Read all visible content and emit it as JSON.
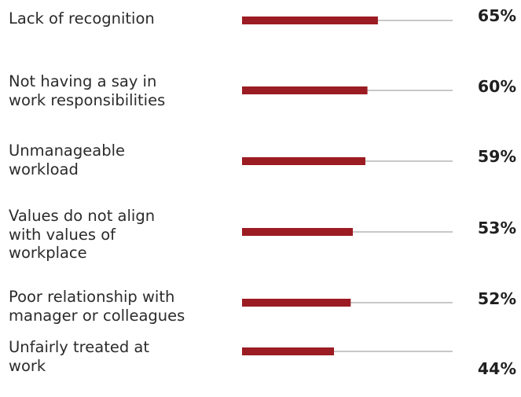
{
  "chart_data": {
    "type": "bar",
    "orientation": "horizontal",
    "categories": [
      "Lack of recognition",
      "Not having a say in\nwork responsibilities",
      "Unmanageable\nworkload",
      "Values do not align\nwith values of\nworkplace",
      "Poor relationship with\nmanager or colleagues",
      "Unfairly treated at\nwork"
    ],
    "values": [
      65,
      60,
      59,
      53,
      52,
      44
    ],
    "value_labels": [
      "65%",
      "60%",
      "59%",
      "53%",
      "52%",
      "44%"
    ],
    "xlim": [
      0,
      100
    ],
    "grid": false,
    "legend": "none",
    "colors": {
      "bar": "#9b1c22",
      "track": "#c8c8c8"
    }
  }
}
